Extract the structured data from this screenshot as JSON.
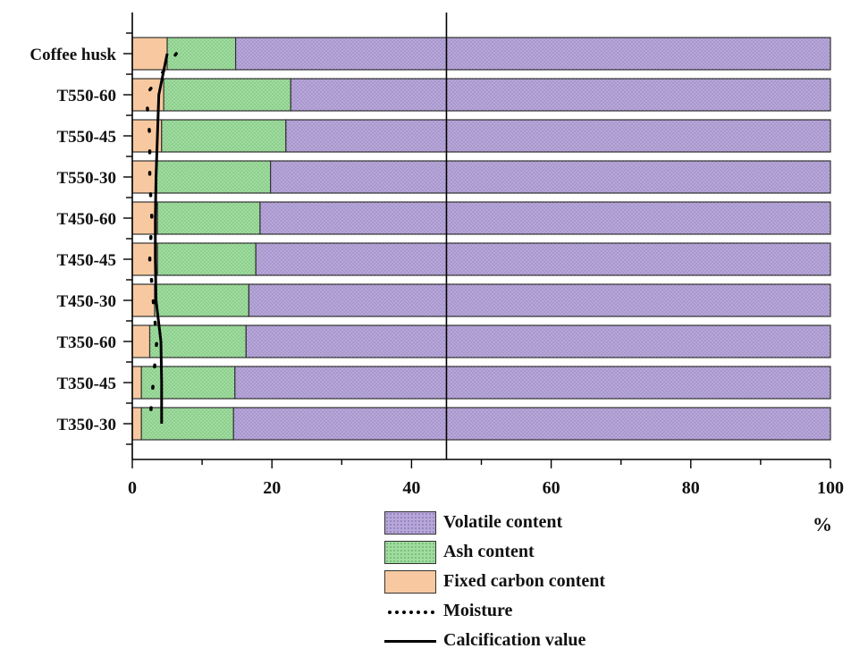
{
  "chart_data": {
    "type": "bar",
    "orientation": "horizontal",
    "stacked": true,
    "categories": [
      "Coffee husk",
      "T550-60",
      "T550-45",
      "T550-30",
      "T450-60",
      "T450-45",
      "T450-30",
      "T350-60",
      "T350-45",
      "T350-30"
    ],
    "series": [
      {
        "name": "Fixed carbon content",
        "color": "#f8c9a0",
        "values": [
          5,
          4.5,
          4.2,
          3.5,
          3.6,
          3.6,
          3.2,
          2.5,
          1.3,
          1.3
        ]
      },
      {
        "name": "Ash content",
        "color": "#9fdc9f",
        "values": [
          9.8,
          18.2,
          17.8,
          16.3,
          14.7,
          14.1,
          13.5,
          13.8,
          13.4,
          13.2
        ]
      },
      {
        "name": "Volatile content",
        "color": "#b7a7d9",
        "values": [
          85.2,
          77.3,
          78,
          80.2,
          81.7,
          82.3,
          83.3,
          83.7,
          85.3,
          85.5
        ]
      }
    ],
    "lines": [
      {
        "name": "Moisture",
        "style": "dotted",
        "values": [
          6.3,
          2,
          2.5,
          2.5,
          2.8,
          2.5,
          3,
          3.5,
          3,
          2.5
        ]
      },
      {
        "name": "Calcification value",
        "style": "solid",
        "values": [
          5,
          3.8,
          3.6,
          3.4,
          3.3,
          3.3,
          3.4,
          4.1,
          4.2,
          4.2
        ]
      }
    ],
    "reference_line_x": 45,
    "xlim": [
      0,
      100
    ],
    "xticks": [
      0,
      20,
      40,
      60,
      80,
      100
    ],
    "unit": "%",
    "legend_position": "bottom",
    "legend_order": [
      "Volatile content",
      "Ash content",
      "Fixed carbon content",
      "Moisture",
      "Calcification value"
    ]
  }
}
